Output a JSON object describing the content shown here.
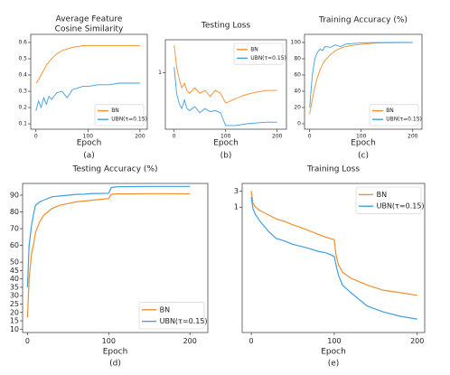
{
  "chart_data": [
    {
      "type": "line",
      "title": [
        "Average Feature",
        "Cosine Similarity"
      ],
      "xlabel": "Epoch",
      "caption": "(a)",
      "x": [
        0,
        5,
        10,
        15,
        20,
        25,
        30,
        40,
        50,
        60,
        70,
        80,
        90,
        100,
        120,
        140,
        160,
        180,
        200
      ],
      "series": [
        {
          "name": "BN",
          "color": "#f28e2b",
          "values": [
            0.35,
            0.37,
            0.4,
            0.43,
            0.46,
            0.48,
            0.5,
            0.53,
            0.55,
            0.56,
            0.57,
            0.575,
            0.58,
            0.58,
            0.58,
            0.58,
            0.58,
            0.58,
            0.58
          ]
        },
        {
          "name": "UBN(τ=0.15)",
          "color": "#3f9fdf",
          "values": [
            0.18,
            0.24,
            0.2,
            0.26,
            0.22,
            0.27,
            0.25,
            0.29,
            0.3,
            0.26,
            0.31,
            0.32,
            0.33,
            0.33,
            0.34,
            0.34,
            0.35,
            0.35,
            0.35
          ]
        }
      ],
      "xlim": [
        -10,
        214
      ],
      "xticks": [
        0,
        100,
        200
      ],
      "ylim": [
        0.067,
        0.65
      ],
      "yticks": [
        0.1,
        0.2,
        0.3,
        0.4,
        0.5,
        0.6
      ],
      "legend": "lower right"
    },
    {
      "type": "line",
      "title": [
        "Testing Loss"
      ],
      "xlabel": "Epoch",
      "caption": "(b)",
      "x": [
        0,
        5,
        10,
        15,
        20,
        25,
        30,
        40,
        50,
        60,
        70,
        80,
        90,
        100,
        120,
        140,
        160,
        180,
        200
      ],
      "series": [
        {
          "name": "BN",
          "color": "#f28e2b",
          "values": [
            2.5,
            1.2,
            0.8,
            0.6,
            0.7,
            0.55,
            0.5,
            0.6,
            0.5,
            0.55,
            0.45,
            0.55,
            0.5,
            0.36,
            0.42,
            0.48,
            0.52,
            0.55,
            0.55
          ]
        },
        {
          "name": "UBN(τ=0.15)",
          "color": "#3f9fdf",
          "values": [
            1.2,
            0.5,
            0.35,
            0.3,
            0.4,
            0.3,
            0.28,
            0.32,
            0.26,
            0.3,
            0.27,
            0.28,
            0.26,
            0.17,
            0.17,
            0.18,
            0.185,
            0.19,
            0.19
          ]
        }
      ],
      "xlim": [
        -17,
        218
      ],
      "xticks": [
        0,
        100,
        200
      ],
      "ylim": [
        0.15,
        3
      ],
      "yticks": [
        1
      ],
      "yscale": "log",
      "legend": "upper right"
    },
    {
      "type": "line",
      "title": [
        "Training Accuracy (%)"
      ],
      "xlabel": "Epoch",
      "caption": "(c)",
      "x": [
        0,
        5,
        10,
        15,
        20,
        25,
        30,
        40,
        50,
        60,
        70,
        80,
        90,
        100,
        120,
        140,
        160,
        180,
        200
      ],
      "series": [
        {
          "name": "BN",
          "color": "#f28e2b",
          "values": [
            12,
            30,
            45,
            57,
            66,
            73,
            78,
            85,
            90,
            93,
            95,
            96,
            97,
            97.5,
            99,
            99.5,
            99.7,
            99.8,
            99.9
          ]
        },
        {
          "name": "UBN(τ=0.15)",
          "color": "#3f9fdf",
          "values": [
            20,
            60,
            80,
            88,
            92,
            90,
            95,
            94,
            97,
            95,
            98,
            98.5,
            99,
            99.5,
            99.8,
            99.9,
            100,
            100,
            100
          ]
        }
      ],
      "xlim": [
        -10,
        218
      ],
      "xticks": [
        0,
        100,
        200
      ],
      "ylim": [
        -6.7,
        110
      ],
      "yticks": [
        0,
        20,
        40,
        60,
        80,
        100
      ],
      "legend": "lower right"
    },
    {
      "type": "line",
      "title": [
        "Testing Accuracy (%)"
      ],
      "xlabel": "Epoch",
      "caption": "(d)",
      "x": [
        0,
        2,
        5,
        8,
        10,
        15,
        20,
        25,
        30,
        40,
        50,
        60,
        70,
        80,
        90,
        100,
        103,
        110,
        130,
        150,
        170,
        200
      ],
      "series": [
        {
          "name": "BN",
          "color": "#f28e2b",
          "values": [
            17,
            40,
            55,
            62,
            68,
            74,
            78,
            80,
            82,
            84,
            85,
            86,
            86.5,
            87,
            87.5,
            88,
            90.5,
            90.8,
            90.8,
            90.9,
            90.9,
            90.8
          ]
        },
        {
          "name": "UBN(τ=0.15)",
          "color": "#3f9fdf",
          "values": [
            35,
            60,
            72,
            80,
            84,
            86,
            87,
            88,
            89,
            89.5,
            90,
            90.5,
            90.6,
            91,
            91,
            91.2,
            94.5,
            95,
            95.1,
            95.2,
            95.2,
            95.2
          ]
        }
      ],
      "xlim": [
        -6,
        222
      ],
      "xticks": [
        0,
        100,
        200
      ],
      "ylim": [
        8,
        97
      ],
      "yticks": [
        10,
        15,
        20,
        25,
        30,
        35,
        40,
        45,
        50,
        60,
        70,
        80,
        90
      ],
      "legend": "lower right"
    },
    {
      "type": "line",
      "title": [
        "Training Loss"
      ],
      "xlabel": "Epoch",
      "caption": "(e)",
      "x": [
        0,
        2,
        5,
        10,
        20,
        30,
        40,
        50,
        60,
        70,
        80,
        90,
        95,
        100,
        102,
        105,
        110,
        120,
        140,
        160,
        180,
        200
      ],
      "series": [
        {
          "name": "BN",
          "color": "#f28e2b",
          "values": [
            3,
            1.3,
            1,
            0.8,
            0.6,
            0.45,
            0.38,
            0.3,
            0.25,
            0.2,
            0.16,
            0.13,
            0.12,
            0.11,
            0.04,
            0.02,
            0.012,
            0.008,
            0.005,
            0.0035,
            0.003,
            0.0025
          ]
        },
        {
          "name": "UBN(τ=0.15)",
          "color": "#3f9fdf",
          "values": [
            2,
            0.9,
            0.6,
            0.4,
            0.2,
            0.12,
            0.1,
            0.08,
            0.07,
            0.06,
            0.05,
            0.045,
            0.04,
            0.035,
            0.02,
            0.01,
            0.005,
            0.003,
            0.0012,
            0.0008,
            0.0006,
            0.0005
          ]
        }
      ],
      "xlim": [
        -11,
        209
      ],
      "xticks": [
        0,
        100,
        200
      ],
      "ylim": [
        0.0002,
        5
      ],
      "yticks": [
        1,
        3
      ],
      "yscale": "log",
      "legend": "upper right"
    }
  ]
}
